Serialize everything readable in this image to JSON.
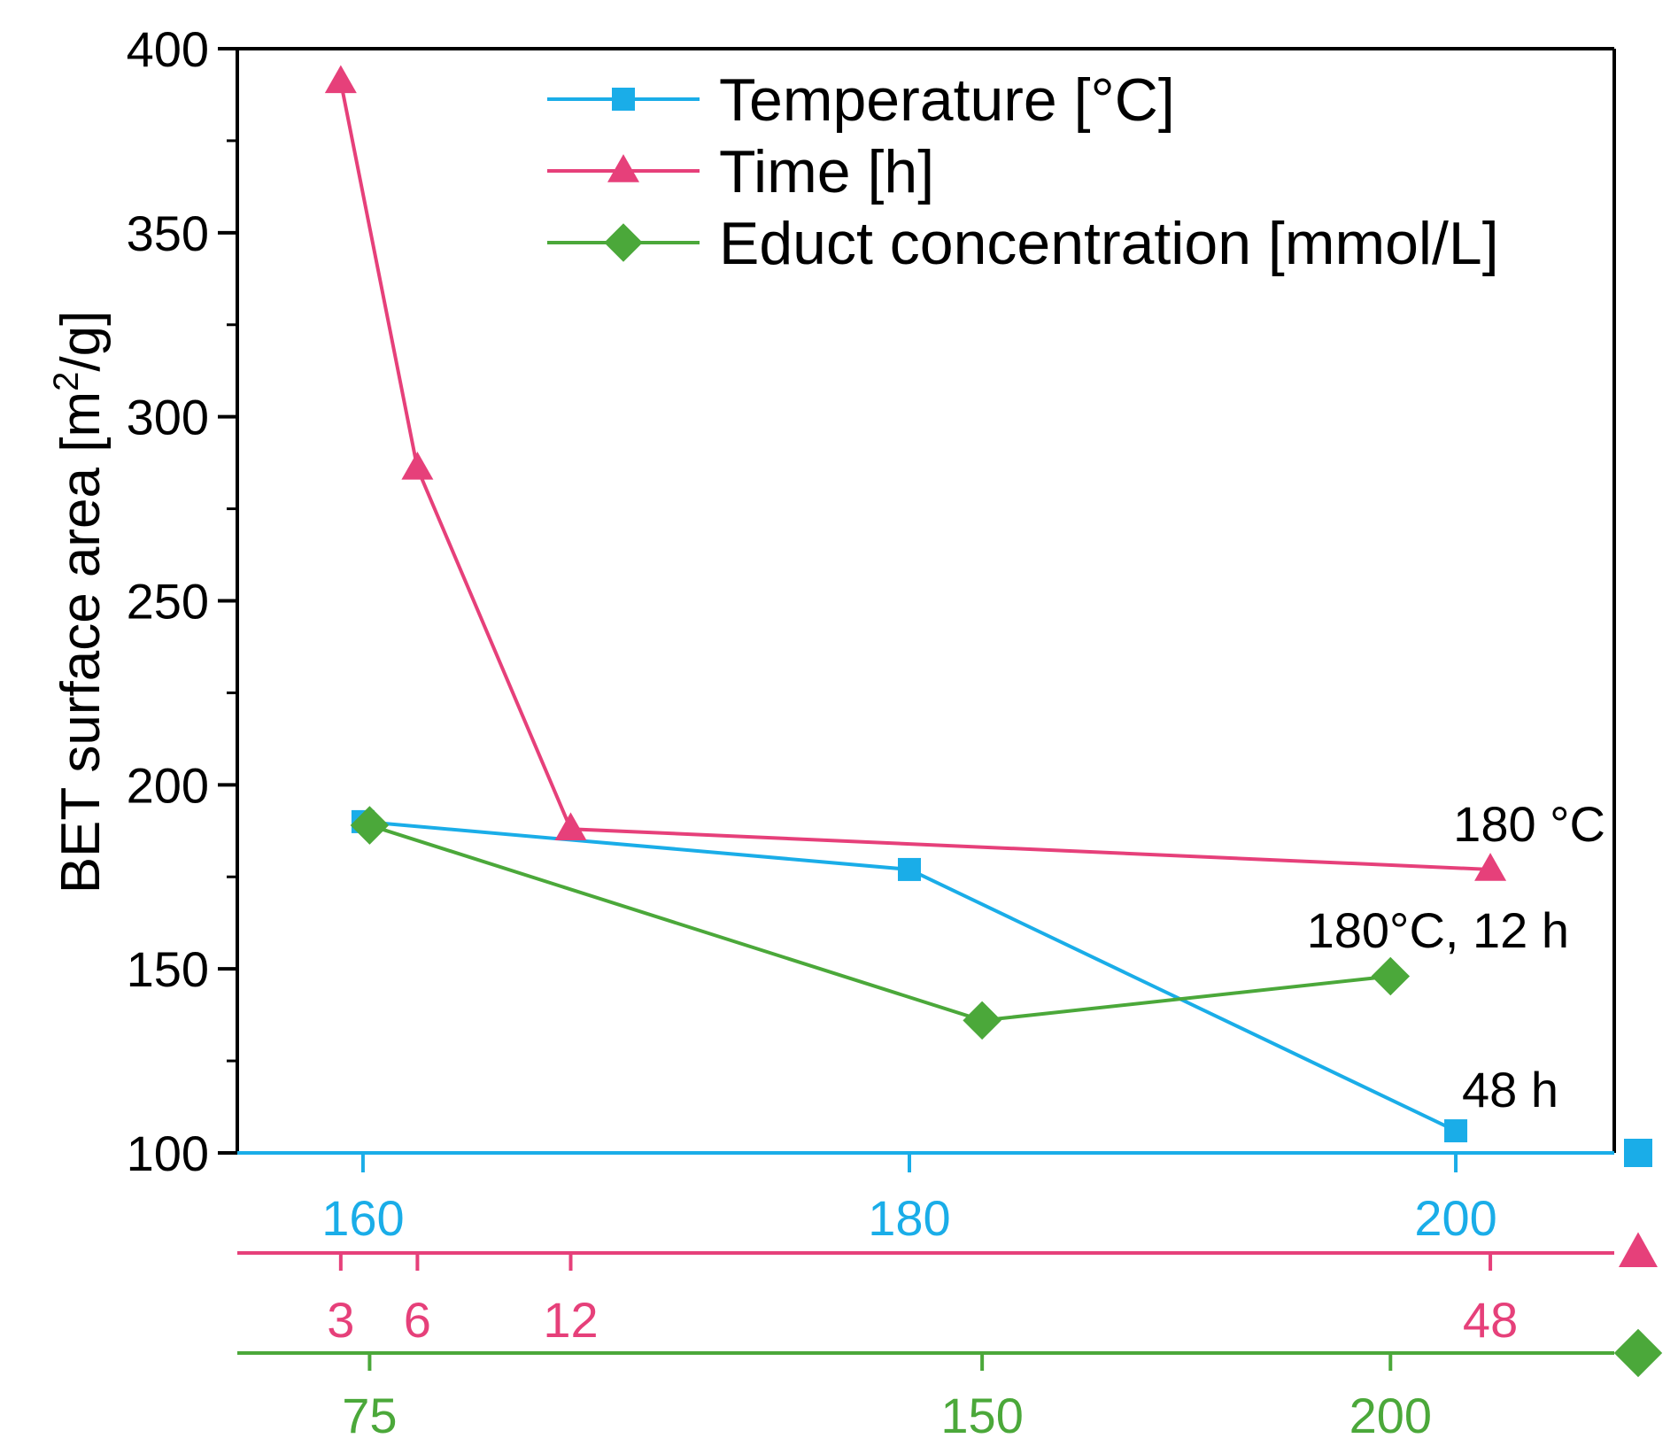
{
  "chart_data": {
    "type": "line",
    "ylabel_main": "BET surface area [m",
    "ylabel_sup": "2",
    "ylabel_tail": "/g]",
    "ylim": [
      100,
      400
    ],
    "yticks": [
      100,
      150,
      200,
      250,
      300,
      350,
      400
    ],
    "colors": {
      "temperature": "#1aade8",
      "time": "#e6407a",
      "concentration": "#4ba83a",
      "axis": "#000000"
    },
    "series": [
      {
        "key": "temperature",
        "name": "Temperature [°C]",
        "marker": "square",
        "xlim": [
          155.4,
          205.8
        ],
        "x": [
          160,
          180,
          200
        ],
        "y": [
          190,
          177,
          106
        ],
        "ticks": [
          160,
          180,
          200
        ]
      },
      {
        "key": "time",
        "name": "Time [h]",
        "marker": "triangle",
        "xlim": [
          -1.05,
          52.85
        ],
        "x": [
          3,
          6,
          12,
          48
        ],
        "y": [
          391,
          286,
          188,
          177
        ],
        "ticks": [
          3,
          6,
          12,
          48
        ]
      },
      {
        "key": "concentration",
        "name": "Educt concentration [mmol/L]",
        "marker": "diamond",
        "xlim": [
          58.8,
          227.4
        ],
        "x": [
          75,
          150,
          200
        ],
        "y": [
          189,
          136,
          148
        ],
        "ticks": [
          75,
          150,
          200
        ]
      }
    ],
    "annotations": [
      {
        "text": "180 °C",
        "series": "time"
      },
      {
        "text": "180°C, 12 h",
        "series": "concentration"
      },
      {
        "text": "48 h",
        "series": "temperature"
      }
    ]
  }
}
